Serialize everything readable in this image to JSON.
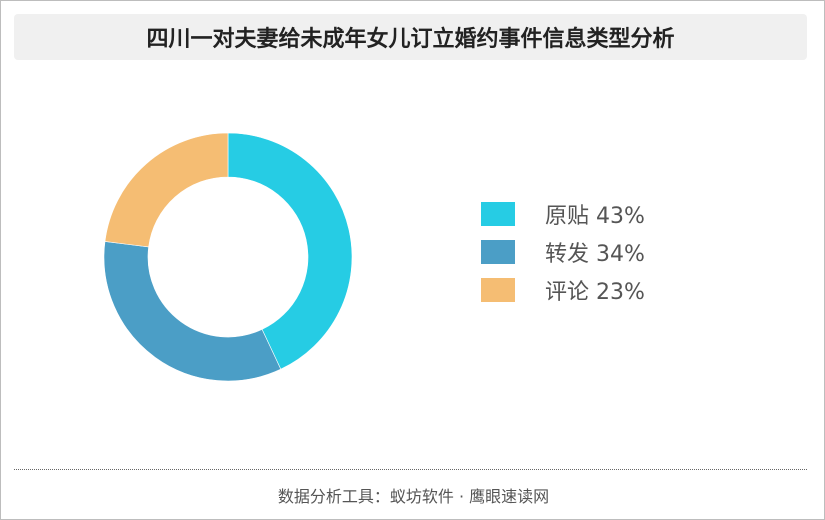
{
  "title": "四川一对夫妻给未成年女儿订立婚约事件信息类型分析",
  "footer": "数据分析工具：蚁坊软件 · 鹰眼速读网",
  "legend": {
    "items": [
      {
        "label": "原贴 43%",
        "color": "#26cce4"
      },
      {
        "label": "转发 34%",
        "color": "#4b9ec6"
      },
      {
        "label": "评论 23%",
        "color": "#f5bd73"
      }
    ]
  },
  "chart_data": {
    "type": "pie",
    "variant": "donut",
    "title": "四川一对夫妻给未成年女儿订立婚约事件信息类型分析",
    "categories": [
      "原贴",
      "转发",
      "评论"
    ],
    "values": [
      43,
      34,
      23
    ],
    "unit": "%",
    "colors": [
      "#26cce4",
      "#4b9ec6",
      "#f5bd73"
    ],
    "legend_position": "right"
  }
}
